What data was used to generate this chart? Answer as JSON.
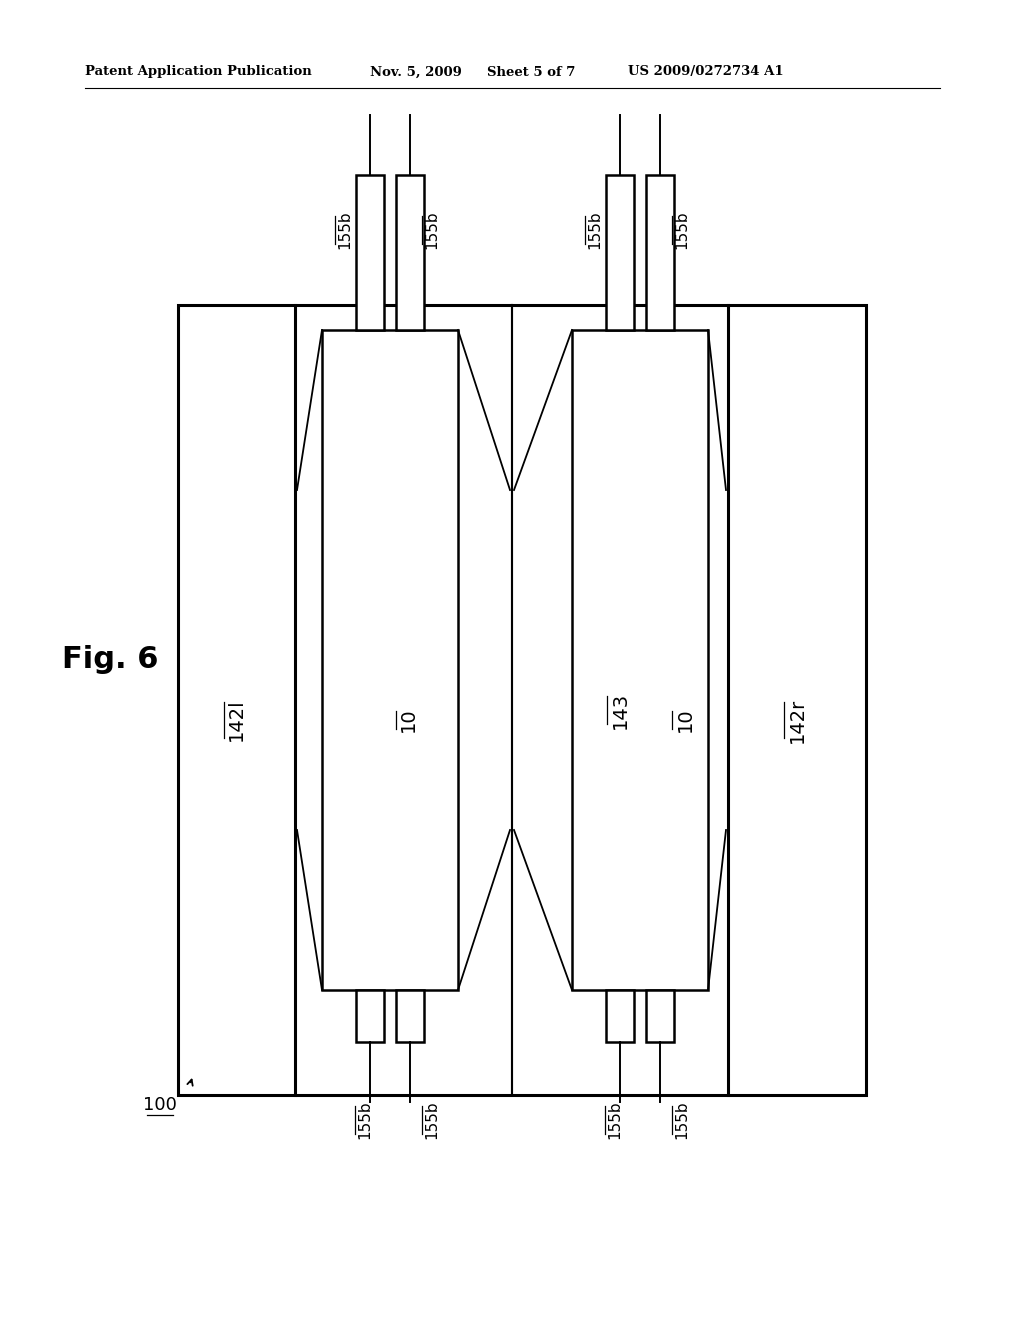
{
  "bg_color": "#ffffff",
  "header_text": "Patent Application Publication",
  "header_date": "Nov. 5, 2009",
  "header_sheet": "Sheet 5 of 7",
  "header_patent": "US 2009/0272734 A1",
  "fig_label": "Fig. 6",
  "lw_outer": 2.2,
  "lw_coil": 1.8,
  "lw_wire": 1.4,
  "lw_diag": 1.3
}
